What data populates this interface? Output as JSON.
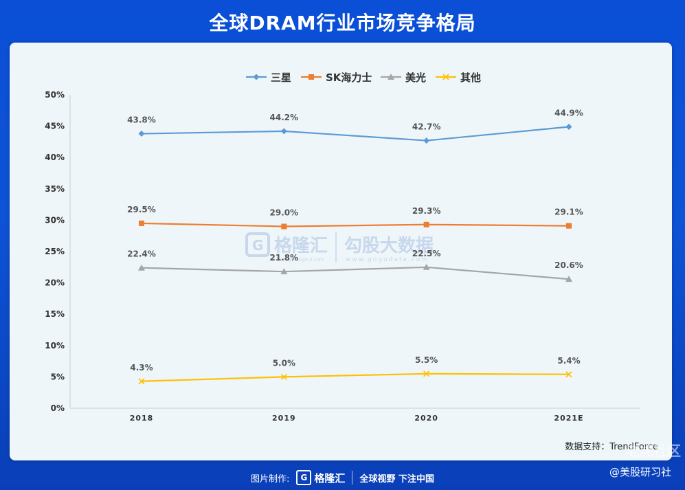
{
  "header": {
    "title": "全球DRAM行业市场竞争格局"
  },
  "source": "数据支持：TrendForce",
  "footer": {
    "made_by": "图片制作:",
    "logo_text": "格隆汇",
    "slogan": "全球视野 下注中国"
  },
  "watermark": {
    "brand": "格隆汇",
    "brand_url": "www.gelonghui.com",
    "partner": "勾股大数据",
    "partner_url": "www.gogudata.com"
  },
  "overlay": {
    "community": "老虎社区",
    "handle": "@美股研习社"
  },
  "chart_data": {
    "type": "line",
    "categories": [
      "2018",
      "2019",
      "2020",
      "2021E"
    ],
    "ylim": [
      0,
      50
    ],
    "yticks": [
      "0%",
      "5%",
      "10%",
      "15%",
      "20%",
      "25%",
      "30%",
      "35%",
      "40%",
      "45%",
      "50%"
    ],
    "legend_position": "top-center",
    "grid": false,
    "series": [
      {
        "name": "三星",
        "color": "#5b9bd5",
        "marker": "diamond",
        "values": [
          43.8,
          44.2,
          42.7,
          44.9
        ],
        "labels": [
          "43.8%",
          "44.2%",
          "42.7%",
          "44.9%"
        ]
      },
      {
        "name": "SK海力士",
        "color": "#ed7d31",
        "marker": "square",
        "values": [
          29.5,
          29.0,
          29.3,
          29.1
        ],
        "labels": [
          "29.5%",
          "29.0%",
          "29.3%",
          "29.1%"
        ]
      },
      {
        "name": "美光",
        "color": "#a5a5a5",
        "marker": "triangle",
        "values": [
          22.4,
          21.8,
          22.5,
          20.6
        ],
        "labels": [
          "22.4%",
          "21.8%",
          "22.5%",
          "20.6%"
        ]
      },
      {
        "name": "其他",
        "color": "#ffc000",
        "marker": "x",
        "values": [
          4.3,
          5.0,
          5.5,
          5.4
        ],
        "labels": [
          "4.3%",
          "5.0%",
          "5.5%",
          "5.4%"
        ]
      }
    ]
  }
}
